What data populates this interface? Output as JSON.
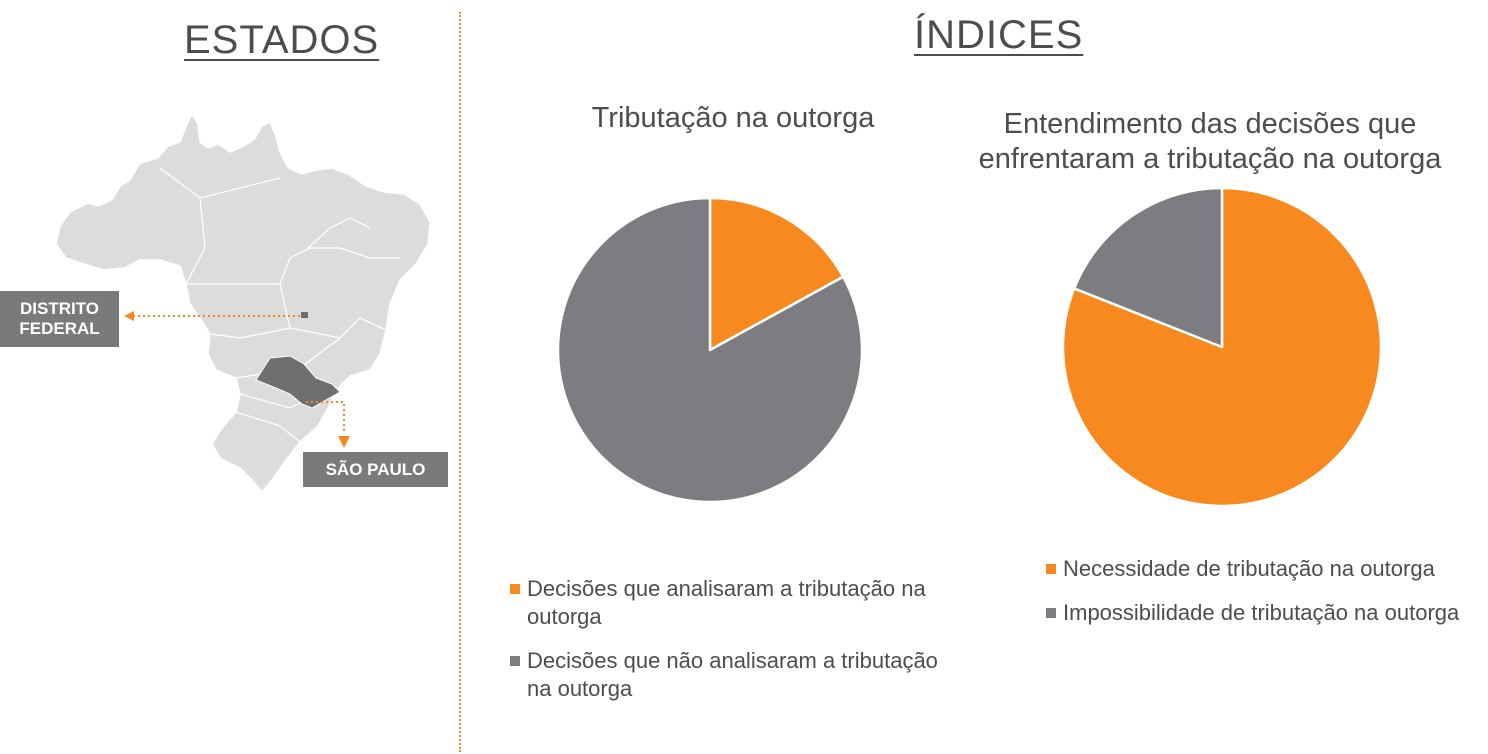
{
  "left_section": {
    "title": "ESTADOS",
    "tags": {
      "df": "DISTRITO FEDERAL",
      "sp": "SÃO PAULO"
    }
  },
  "right_section": {
    "title": "ÍNDICES"
  },
  "colors": {
    "orange": "#f7891f",
    "gray": "#7d7c80",
    "map_land": "#dcdcdc",
    "map_highlight": "#6f6f71"
  },
  "chart_data": [
    {
      "type": "pie",
      "title": "Tributação na outorga",
      "slices": [
        {
          "label": "Decisões que analisaram a tributação na outorga",
          "value": 17,
          "color": "#f7891f"
        },
        {
          "label": "Decisões que não analisaram a tributação na outorga",
          "value": 83,
          "color": "#7d7c80"
        }
      ],
      "legend_position": "bottom"
    },
    {
      "type": "pie",
      "title": "Entendimento das decisões que enfrentaram a tributação na outorga",
      "slices": [
        {
          "label": "Necessidade de tributação na outorga",
          "value": 81,
          "color": "#f7891f"
        },
        {
          "label": "Impossibilidade de tributação na outorga",
          "value": 19,
          "color": "#7d7c80"
        }
      ],
      "legend_position": "bottom"
    }
  ]
}
